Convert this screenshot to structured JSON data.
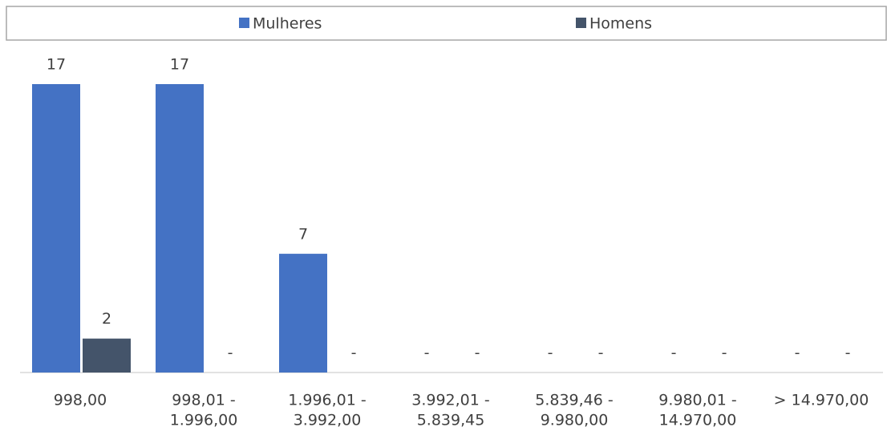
{
  "chart_data": {
    "type": "bar",
    "categories": [
      [
        "998,00"
      ],
      [
        "998,01 -",
        "1.996,00"
      ],
      [
        "1.996,01 -",
        "3.992,00"
      ],
      [
        "3.992,01 -",
        "5.839,45"
      ],
      [
        "5.839,46 -",
        "9.980,00"
      ],
      [
        "9.980,01 -",
        "14.970,00"
      ],
      [
        "> 14.970,00"
      ]
    ],
    "series": [
      {
        "name": "Mulheres",
        "color": "#4472c4",
        "values": [
          17,
          17,
          7,
          0,
          0,
          0,
          0
        ],
        "value_labels": [
          "17",
          "17",
          "7",
          "-",
          "-",
          "-",
          "-"
        ]
      },
      {
        "name": "Homens",
        "color": "#44546a",
        "values": [
          2,
          0,
          0,
          0,
          0,
          0,
          0
        ],
        "value_labels": [
          "2",
          "-",
          "-",
          "-",
          "-",
          "-",
          "-"
        ]
      }
    ],
    "ylim": [
      0,
      17
    ],
    "legend": "top"
  }
}
